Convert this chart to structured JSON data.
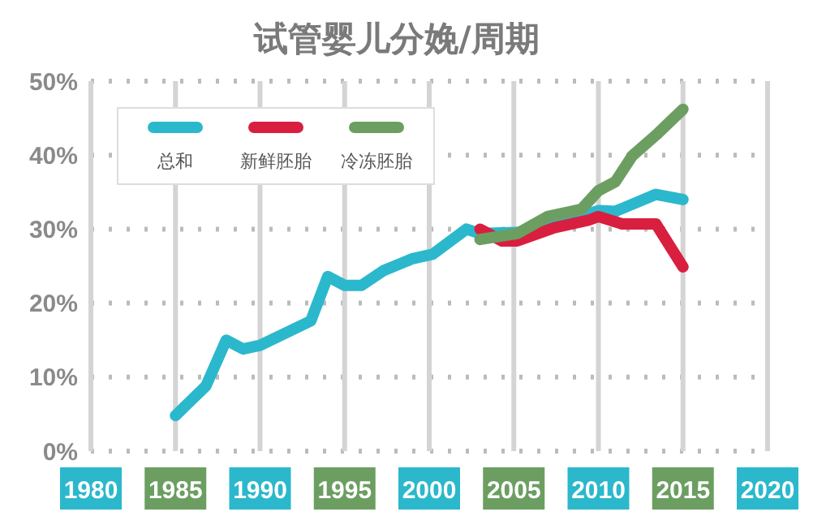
{
  "chart_data": {
    "type": "line",
    "title": "试管婴儿分娩/周期",
    "xlim": [
      1980,
      2020
    ],
    "xticks": [
      1980,
      1985,
      1990,
      1995,
      2000,
      2005,
      2010,
      2015,
      2020
    ],
    "ylim": [
      0,
      50
    ],
    "yticks": [
      {
        "value": 0,
        "label": "0%"
      },
      {
        "value": 10,
        "label": "10%"
      },
      {
        "value": 20,
        "label": "20%"
      },
      {
        "value": 30,
        "label": "30%"
      },
      {
        "value": 40,
        "label": "40%"
      },
      {
        "value": 50,
        "label": "50%"
      }
    ],
    "grid": true,
    "legend": "top left",
    "line_style": "solid",
    "marker": "none",
    "series": [
      {
        "name": "总和",
        "color": "#2bb8cc",
        "x": [
          1985,
          1986.8,
          1988,
          1989,
          1990,
          1993,
          1994,
          1995,
          1996,
          1997.3,
          1999,
          2000.2,
          2002.2,
          2003,
          2006,
          2008,
          2010,
          2011,
          2013.4,
          2015
        ],
        "values": [
          4.8,
          8.8,
          15,
          13.8,
          14.3,
          17.6,
          23.6,
          22.4,
          22.4,
          24.4,
          26,
          26.6,
          30,
          29.4,
          29.6,
          31,
          32.5,
          32.4,
          34.7,
          34
        ]
      },
      {
        "name": "新鲜胚胎",
        "color": "#d91f3f",
        "x": [
          2003,
          2004.3,
          2005.2,
          2007.4,
          2009.4,
          2010,
          2011.4,
          2013.4,
          2015
        ],
        "values": [
          30,
          28.4,
          28.4,
          30.2,
          31.2,
          31.7,
          30.7,
          30.7,
          24.9
        ]
      },
      {
        "name": "冷冻胚胎",
        "color": "#6c9e62",
        "x": [
          2003,
          2005.2,
          2007,
          2009,
          2010,
          2011,
          2012,
          2013.4,
          2015
        ],
        "values": [
          28.6,
          29.4,
          31.7,
          32.7,
          35.2,
          36.4,
          39.9,
          42.7,
          46.2
        ]
      }
    ]
  }
}
